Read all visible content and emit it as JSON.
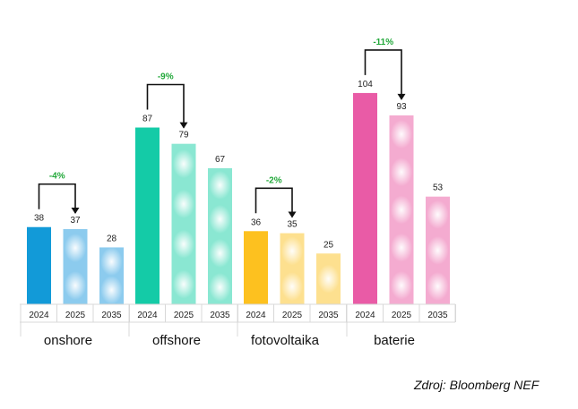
{
  "chart_data": {
    "type": "bar",
    "years": [
      "2024",
      "2025",
      "2035"
    ],
    "groups": [
      {
        "label": "onshore",
        "values": [
          38,
          37,
          28
        ],
        "change": "-4%",
        "colors": [
          "#129ad8",
          "#8ccbee",
          "#8ccbee"
        ]
      },
      {
        "label": "offshore",
        "values": [
          87,
          79,
          67
        ],
        "change": "-9%",
        "colors": [
          "#14cba7",
          "#8ae7d2",
          "#8ae7d2"
        ]
      },
      {
        "label": "fotovoltaika",
        "values": [
          36,
          35,
          25
        ],
        "change": "-2%",
        "colors": [
          "#fdc11f",
          "#fde08f",
          "#fde08f"
        ]
      },
      {
        "label": "baterie",
        "values": [
          104,
          93,
          53
        ],
        "change": "-11%",
        "colors": [
          "#e95ba6",
          "#f4abd0",
          "#f4abd0"
        ]
      }
    ],
    "ylim": [
      0,
      110
    ],
    "legend": "none",
    "grid": false
  },
  "colors": {
    "change_text": "#22a83a",
    "bracket": "#111111",
    "axis_text": "#222222"
  },
  "source": "Zdroj: Bloomberg NEF"
}
